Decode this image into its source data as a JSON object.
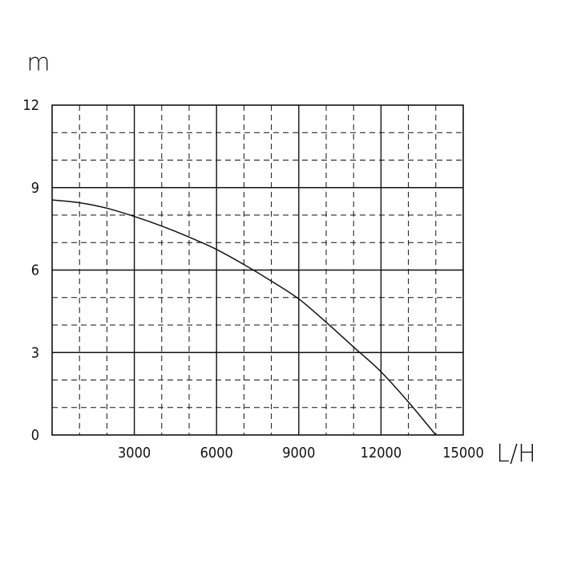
{
  "chart_data": {
    "type": "line",
    "title": "",
    "xlabel": "L/H",
    "ylabel": "m",
    "xlim": [
      0,
      15000
    ],
    "ylim": [
      0,
      12
    ],
    "x_ticks": [
      3000,
      6000,
      9000,
      12000,
      15000
    ],
    "x_tick_labels": [
      "3000",
      "6000",
      "9000",
      "12000",
      "15000"
    ],
    "y_ticks": [
      0,
      3,
      6,
      9,
      12
    ],
    "y_tick_labels": [
      "0",
      "3",
      "6",
      "9",
      "12"
    ],
    "grid": {
      "major": true,
      "minor": true,
      "minor_style": "dashed"
    },
    "series": [
      {
        "x": [
          0,
          1000,
          2000,
          3000,
          4000,
          5000,
          6000,
          7000,
          8000,
          9000,
          10000,
          11000,
          12000,
          13000,
          14000
        ],
        "y": [
          8.55,
          8.45,
          8.25,
          7.95,
          7.6,
          7.2,
          6.75,
          6.2,
          5.6,
          4.95,
          4.1,
          3.2,
          2.3,
          1.2,
          0
        ]
      }
    ],
    "colors": {
      "line": "#111111",
      "grid": "#111111",
      "background": "#ffffff"
    }
  }
}
